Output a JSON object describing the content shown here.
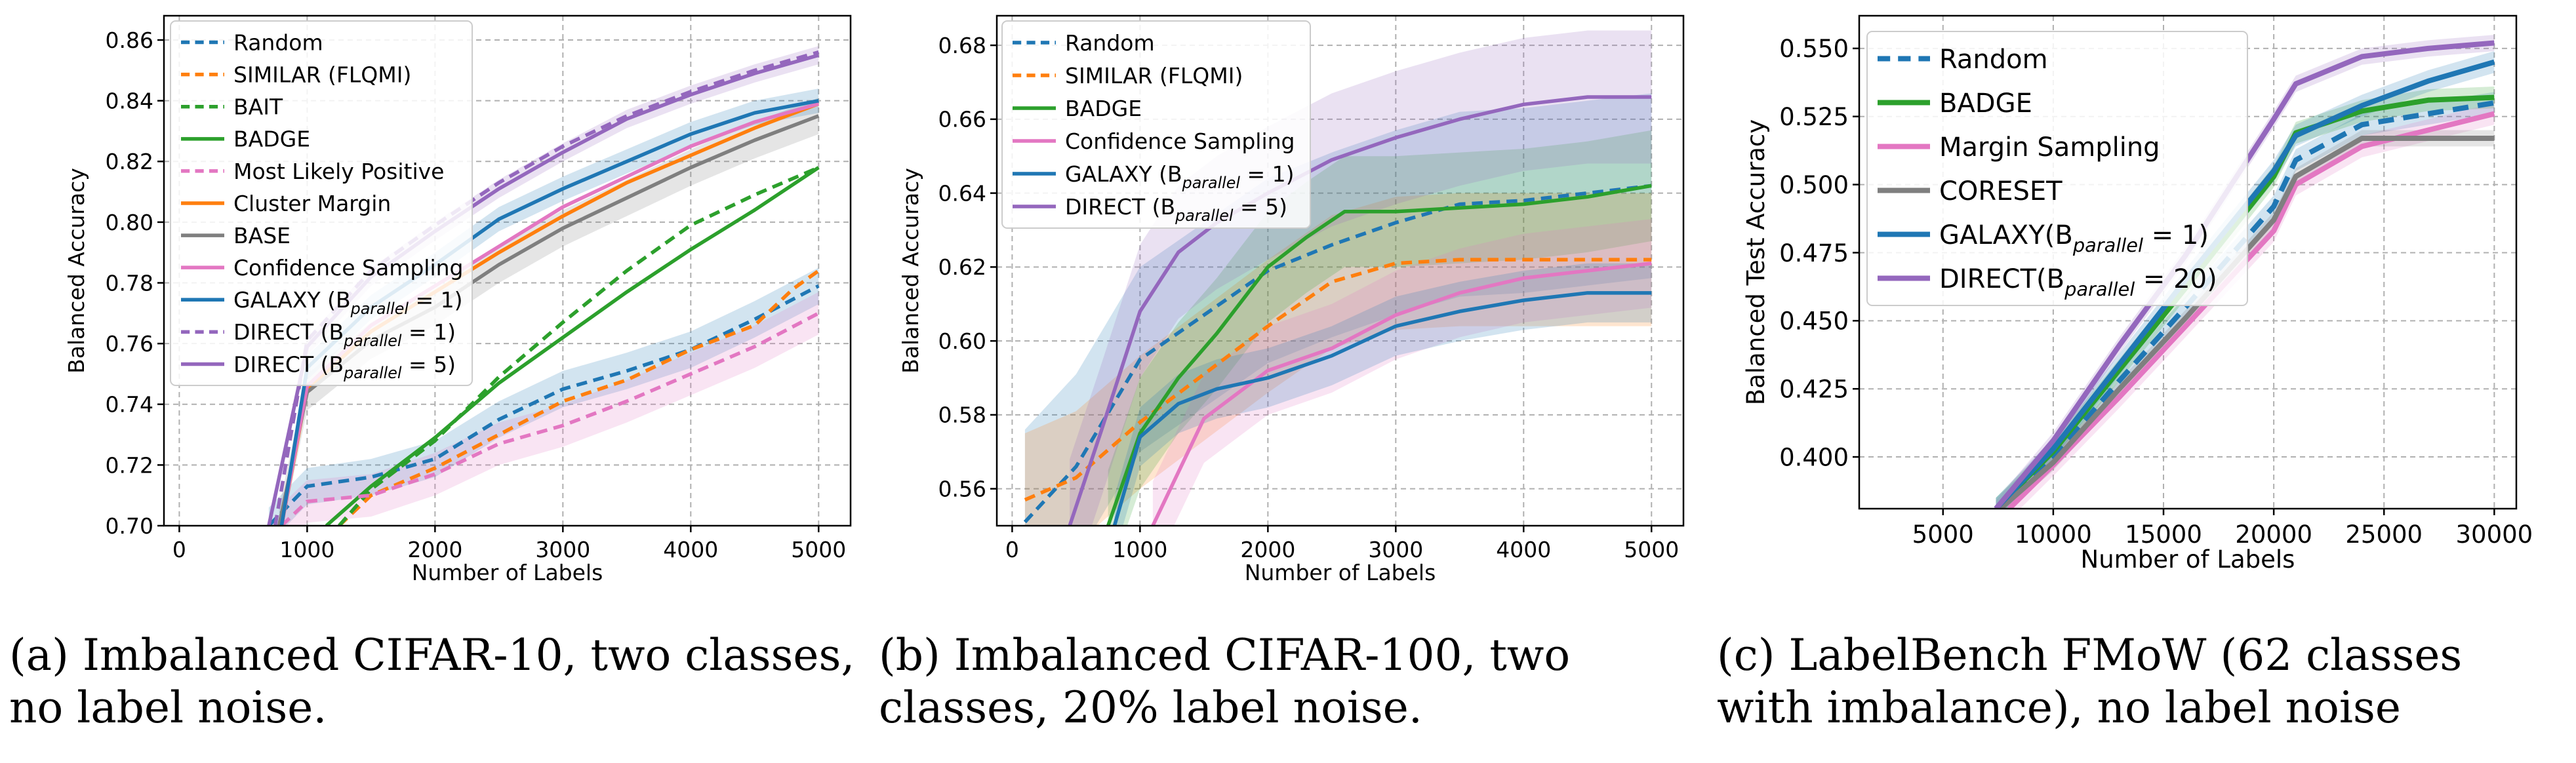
{
  "captions": {
    "a": "(a) Imbalanced CIFAR-10, two classes, no label noise.",
    "b": "(b) Imbalanced CIFAR-100, two classes, 20% label noise.",
    "c": "(c) LabelBench FMoW (62 classes with imbalance), no label noise"
  },
  "chart_data": [
    {
      "type": "line",
      "xlabel": "Number of Labels",
      "ylabel": "Balanced Accuracy",
      "xlim": [
        -120,
        5250
      ],
      "ylim": [
        0.7,
        0.868
      ],
      "xticks": [
        0,
        1000,
        2000,
        3000,
        4000,
        5000
      ],
      "yticks": [
        0.7,
        0.72,
        0.74,
        0.76,
        0.78,
        0.8,
        0.82,
        0.84,
        0.86
      ],
      "ytick_labels": [
        "0.70",
        "0.72",
        "0.74",
        "0.76",
        "0.78",
        "0.80",
        "0.82",
        "0.84",
        "0.86"
      ],
      "grid": true,
      "legend_position": "upper-left",
      "series": [
        {
          "name": "Random",
          "color": "#1f77b4",
          "dash": true,
          "band": true,
          "x": [
            700,
            1000,
            1500,
            2000,
            2500,
            3000,
            3500,
            4000,
            4500,
            5000
          ],
          "y": [
            0.7,
            0.713,
            0.716,
            0.722,
            0.735,
            0.745,
            0.751,
            0.758,
            0.768,
            0.779
          ],
          "spread": 0.006
        },
        {
          "name": "SIMILAR (FLQMI)",
          "color": "#ff7f0e",
          "dash": true,
          "x": [
            1250,
            1500,
            2000,
            2500,
            3000,
            3500,
            4000,
            4500,
            4800,
            5000
          ],
          "y": [
            0.7,
            0.71,
            0.719,
            0.73,
            0.741,
            0.748,
            0.758,
            0.766,
            0.778,
            0.784
          ]
        },
        {
          "name": "BAIT",
          "color": "#2ca02c",
          "dash": true,
          "x": [
            1250,
            1500,
            2000,
            2500,
            3000,
            3500,
            4000,
            4500,
            5000
          ],
          "y": [
            0.7,
            0.712,
            0.728,
            0.749,
            0.767,
            0.784,
            0.799,
            0.809,
            0.818
          ]
        },
        {
          "name": "BADGE",
          "color": "#2ca02c",
          "dash": false,
          "x": [
            1150,
            1500,
            2000,
            2500,
            3000,
            3500,
            4000,
            4500,
            5000
          ],
          "y": [
            0.7,
            0.713,
            0.729,
            0.747,
            0.762,
            0.777,
            0.791,
            0.804,
            0.818
          ]
        },
        {
          "name": "Most Likely Positive",
          "color": "#e377c2",
          "dash": true,
          "band": true,
          "x": [
            800,
            1000,
            1500,
            2000,
            2500,
            3000,
            3500,
            4000,
            4500,
            5000
          ],
          "y": [
            0.7,
            0.708,
            0.71,
            0.717,
            0.727,
            0.733,
            0.741,
            0.75,
            0.759,
            0.77
          ],
          "spread": 0.007
        },
        {
          "name": "Cluster Margin",
          "color": "#ff7f0e",
          "dash": false,
          "x": [
            800,
            1000,
            1500,
            2000,
            2500,
            3000,
            3500,
            4000,
            4500,
            5000
          ],
          "y": [
            0.7,
            0.745,
            0.764,
            0.777,
            0.79,
            0.802,
            0.813,
            0.822,
            0.831,
            0.839
          ]
        },
        {
          "name": "BASE",
          "color": "#7f7f7f",
          "dash": false,
          "band": true,
          "x": [
            780,
            1000,
            1500,
            2000,
            2500,
            3000,
            3500,
            4000,
            4500,
            5000
          ],
          "y": [
            0.7,
            0.744,
            0.761,
            0.772,
            0.786,
            0.798,
            0.808,
            0.818,
            0.827,
            0.835
          ],
          "spread": 0.006
        },
        {
          "name": "Confidence Sampling",
          "color": "#e377c2",
          "dash": false,
          "x": [
            800,
            1000,
            1500,
            2000,
            2500,
            3000,
            3500,
            4000,
            4500,
            5000
          ],
          "y": [
            0.7,
            0.746,
            0.766,
            0.779,
            0.792,
            0.805,
            0.815,
            0.825,
            0.833,
            0.839
          ]
        },
        {
          "name": "GALAXY (B_parallel = 1)",
          "color": "#1f77b4",
          "dash": false,
          "band": true,
          "x": [
            800,
            1000,
            1500,
            2000,
            2500,
            3000,
            3500,
            4000,
            4500,
            5000
          ],
          "y": [
            0.7,
            0.752,
            0.772,
            0.786,
            0.801,
            0.811,
            0.82,
            0.829,
            0.836,
            0.84
          ],
          "spread": 0.004
        },
        {
          "name": "DIRECT (B_parallel = 1)",
          "color": "#9467bd",
          "dash": true,
          "x": [
            750,
            1000,
            1500,
            2000,
            2500,
            3000,
            3500,
            4000,
            4500,
            5000
          ],
          "y": [
            0.7,
            0.761,
            0.784,
            0.799,
            0.813,
            0.825,
            0.835,
            0.843,
            0.85,
            0.856
          ]
        },
        {
          "name": "DIRECT (B_parallel = 5)",
          "color": "#9467bd",
          "dash": false,
          "band": true,
          "x": [
            700,
            1000,
            1500,
            2000,
            2500,
            3000,
            3500,
            4000,
            4500,
            5000
          ],
          "y": [
            0.7,
            0.759,
            0.782,
            0.797,
            0.811,
            0.823,
            0.834,
            0.842,
            0.849,
            0.855
          ],
          "spread": 0.003
        }
      ]
    },
    {
      "type": "line",
      "xlabel": "Number of Labels",
      "ylabel": "Balanced Accuracy",
      "xlim": [
        -120,
        5250
      ],
      "ylim": [
        0.55,
        0.688
      ],
      "xticks": [
        0,
        1000,
        2000,
        3000,
        4000,
        5000
      ],
      "yticks": [
        0.56,
        0.58,
        0.6,
        0.62,
        0.64,
        0.66,
        0.68
      ],
      "ytick_labels": [
        "0.56",
        "0.58",
        "0.60",
        "0.62",
        "0.64",
        "0.66",
        "0.68"
      ],
      "grid": true,
      "legend_position": "upper-left",
      "series": [
        {
          "name": "Random",
          "color": "#1f77b4",
          "dash": true,
          "band": true,
          "x": [
            100,
            500,
            1000,
            1500,
            2000,
            2500,
            3000,
            3500,
            4000,
            4500,
            5000
          ],
          "y": [
            0.551,
            0.566,
            0.595,
            0.607,
            0.619,
            0.626,
            0.632,
            0.637,
            0.638,
            0.64,
            0.642
          ],
          "spread": 0.025
        },
        {
          "name": "SIMILAR (FLQMI)",
          "color": "#ff7f0e",
          "dash": true,
          "band": true,
          "x": [
            100,
            500,
            1000,
            1500,
            2000,
            2500,
            3000,
            3500,
            4000,
            4500,
            5000
          ],
          "y": [
            0.557,
            0.563,
            0.578,
            0.591,
            0.604,
            0.616,
            0.621,
            0.622,
            0.622,
            0.622,
            0.622
          ],
          "spread": 0.018
        },
        {
          "name": "BADGE",
          "color": "#2ca02c",
          "dash": false,
          "band": true,
          "x": [
            750,
            1000,
            1300,
            1600,
            2000,
            2300,
            2600,
            3000,
            3500,
            4000,
            4500,
            5000
          ],
          "y": [
            0.55,
            0.575,
            0.59,
            0.602,
            0.62,
            0.628,
            0.635,
            0.635,
            0.636,
            0.637,
            0.639,
            0.642
          ],
          "spread": 0.015
        },
        {
          "name": "Confidence Sampling",
          "color": "#e377c2",
          "dash": false,
          "band": true,
          "x": [
            1100,
            1500,
            2000,
            2500,
            3000,
            3500,
            4000,
            4500,
            5000
          ],
          "y": [
            0.55,
            0.579,
            0.592,
            0.598,
            0.607,
            0.613,
            0.617,
            0.619,
            0.621
          ],
          "spread": 0.012
        },
        {
          "name": "GALAXY (B_parallel = 1)",
          "color": "#1f77b4",
          "dash": false,
          "band": true,
          "x": [
            800,
            1000,
            1300,
            1600,
            2000,
            2500,
            3000,
            3500,
            4000,
            4500,
            5000
          ],
          "y": [
            0.55,
            0.574,
            0.583,
            0.587,
            0.59,
            0.596,
            0.604,
            0.608,
            0.611,
            0.613,
            0.613
          ],
          "spread": 0.008
        },
        {
          "name": "DIRECT (B_parallel = 5)",
          "color": "#9467bd",
          "dash": false,
          "band": true,
          "x": [
            450,
            700,
            1000,
            1300,
            1600,
            2000,
            2500,
            3000,
            3500,
            4000,
            4500,
            5000
          ],
          "y": [
            0.55,
            0.576,
            0.608,
            0.624,
            0.632,
            0.64,
            0.649,
            0.655,
            0.66,
            0.664,
            0.666,
            0.666
          ],
          "spread": 0.018
        }
      ]
    },
    {
      "type": "line",
      "xlabel": "Number of Labels",
      "ylabel": "Balanced Test Accuracy",
      "xlim": [
        1200,
        31000
      ],
      "ylim": [
        0.381,
        0.562
      ],
      "xticks": [
        5000,
        10000,
        15000,
        20000,
        25000,
        30000
      ],
      "yticks": [
        0.4,
        0.425,
        0.45,
        0.475,
        0.5,
        0.525,
        0.55
      ],
      "ytick_labels": [
        "0.400",
        "0.425",
        "0.450",
        "0.475",
        "0.500",
        "0.525",
        "0.550"
      ],
      "grid": true,
      "legend_position": "upper-left",
      "series": [
        {
          "name": "Random",
          "color": "#1f77b4",
          "dash": true,
          "band": true,
          "x": [
            7400,
            10000,
            13000,
            16000,
            20000,
            21000,
            24000,
            27000,
            30000
          ],
          "y": [
            0.381,
            0.4,
            0.428,
            0.455,
            0.492,
            0.509,
            0.522,
            0.526,
            0.53
          ],
          "spread": 0.004
        },
        {
          "name": "BADGE",
          "color": "#2ca02c",
          "dash": false,
          "band": true,
          "x": [
            7400,
            10000,
            13000,
            16000,
            20000,
            21000,
            24000,
            27000,
            30000
          ],
          "y": [
            0.381,
            0.402,
            0.432,
            0.462,
            0.503,
            0.519,
            0.527,
            0.531,
            0.532
          ],
          "spread": 0.004
        },
        {
          "name": "Margin Sampling",
          "color": "#e377c2",
          "dash": false,
          "band": true,
          "x": [
            8000,
            10000,
            13000,
            16000,
            20000,
            21000,
            24000,
            27000,
            30000
          ],
          "y": [
            0.381,
            0.397,
            0.422,
            0.448,
            0.483,
            0.5,
            0.514,
            0.52,
            0.526
          ],
          "spread": 0.004
        },
        {
          "name": "CORESET",
          "color": "#7f7f7f",
          "dash": false,
          "band": true,
          "x": [
            7600,
            10000,
            13000,
            16000,
            20000,
            21000,
            24000,
            27000,
            30000
          ],
          "y": [
            0.381,
            0.398,
            0.425,
            0.451,
            0.487,
            0.503,
            0.517,
            0.517,
            0.517
          ],
          "spread": 0.003
        },
        {
          "name": "GALAXY(B_parallel = 1)",
          "color": "#1f77b4",
          "dash": false,
          "band": true,
          "x": [
            7400,
            10000,
            13000,
            16000,
            20000,
            21000,
            24000,
            27000,
            30000
          ],
          "y": [
            0.381,
            0.403,
            0.434,
            0.465,
            0.505,
            0.518,
            0.529,
            0.538,
            0.545
          ],
          "spread": 0.004
        },
        {
          "name": "DIRECT(B_parallel = 20)",
          "color": "#9467bd",
          "dash": false,
          "band": true,
          "x": [
            7400,
            10000,
            13000,
            16000,
            20000,
            21000,
            24000,
            27000,
            30000
          ],
          "y": [
            0.381,
            0.406,
            0.441,
            0.474,
            0.524,
            0.537,
            0.547,
            0.55,
            0.552
          ],
          "spread": 0.003
        }
      ]
    }
  ]
}
